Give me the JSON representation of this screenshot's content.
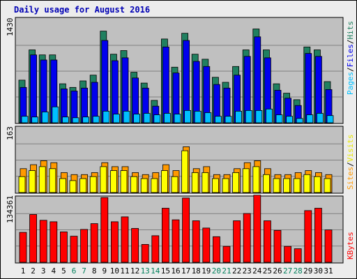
{
  "title": "Daily usage for August 2016",
  "colors": {
    "background": "#ececec",
    "panel": "#c0c0c0",
    "pages": "#0000ee",
    "files": "#0000ee",
    "hits": "#00c0ff",
    "hits_top": "#208060",
    "sites": "#ff9900",
    "visits": "#ffff00",
    "kbytes": "#ff0000",
    "weekday": "#000000",
    "weekend": "#00805c"
  },
  "legend": {
    "top": [
      "Pages",
      "/",
      "Files",
      "/",
      "Hits"
    ],
    "middle": [
      "Sites",
      "/",
      "Visits"
    ],
    "bottom": [
      "KBytes"
    ]
  },
  "chart_data": {
    "type": "bar",
    "title": "Daily usage for August 2016",
    "categories": [
      "1",
      "2",
      "3",
      "4",
      "5",
      "6",
      "7",
      "8",
      "9",
      "10",
      "11",
      "12",
      "13",
      "14",
      "15",
      "16",
      "17",
      "18",
      "19",
      "20",
      "21",
      "22",
      "23",
      "24",
      "25",
      "26",
      "27",
      "28",
      "29",
      "30",
      "31"
    ],
    "weekend_days": [
      "6",
      "7",
      "13",
      "14",
      "20",
      "21",
      "27",
      "28"
    ],
    "panels": [
      {
        "name": "top",
        "ymax_label": "1430",
        "ymax": 1430,
        "series": [
          {
            "name": "Hits",
            "values": [
              590,
              1010,
              940,
              940,
              540,
              490,
              580,
              660,
              1270,
              950,
              1000,
              700,
              550,
              310,
              1160,
              770,
              1240,
              950,
              880,
              630,
              560,
              780,
              1010,
              1300,
              1010,
              540,
              410,
              320,
              1050,
              1010,
              570
            ]
          },
          {
            "name": "Files",
            "values": [
              490,
              940,
              870,
              870,
              470,
              440,
              480,
              560,
              1140,
              860,
              900,
              620,
              480,
              230,
              1050,
              690,
              1140,
              850,
              780,
              530,
              480,
              660,
              920,
              1190,
              900,
              450,
              340,
              240,
              960,
              920,
              460
            ]
          },
          {
            "name": "Pages",
            "values": [
              90,
              80,
              150,
              220,
              80,
              70,
              80,
              90,
              160,
              120,
              160,
              120,
              130,
              110,
              130,
              120,
              170,
              160,
              140,
              90,
              90,
              160,
              170,
              170,
              190,
              110,
              90,
              60,
              110,
              130,
              100
            ]
          }
        ]
      },
      {
        "name": "middle",
        "ymax_label": "163",
        "ymax": 163,
        "series": [
          {
            "name": "Sites",
            "values": [
              60,
              70,
              80,
              75,
              50,
              45,
              45,
              50,
              75,
              65,
              65,
              50,
              45,
              50,
              70,
              55,
              115,
              60,
              65,
              45,
              45,
              60,
              75,
              80,
              60,
              45,
              45,
              50,
              55,
              50,
              45
            ]
          },
          {
            "name": "Visits",
            "values": [
              40,
              55,
              65,
              60,
              35,
              30,
              35,
              40,
              65,
              55,
              55,
              40,
              35,
              35,
              55,
              40,
              105,
              50,
              50,
              35,
              35,
              50,
              60,
              65,
              45,
              35,
              35,
              35,
              45,
              40,
              35
            ]
          }
        ]
      },
      {
        "name": "bottom",
        "ymax_label": "134361",
        "ymax": 134361,
        "series": [
          {
            "name": "KBytes",
            "values": [
              62000,
              99000,
              87000,
              84000,
              63000,
              54000,
              68000,
              80000,
              134000,
              84000,
              94000,
              70000,
              37000,
              55000,
              112000,
              88000,
              133000,
              86000,
              71000,
              53000,
              33000,
              86000,
              101000,
              139000,
              86000,
              66000,
              33000,
              28000,
              107000,
              112000,
              67000
            ]
          }
        ]
      }
    ]
  }
}
